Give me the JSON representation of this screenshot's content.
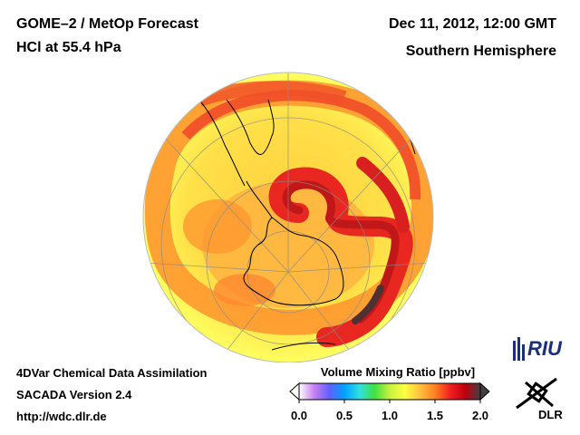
{
  "header": {
    "instrument": "GOME–2 / MetOp Forecast",
    "species": "HCl at 55.4 hPa",
    "datetime": "Dec 11, 2012, 12:00 GMT",
    "region": "Southern Hemisphere"
  },
  "footer": {
    "line1": "4DVar Chemical Data Assimilation",
    "line2": "SACADA Version 2.4",
    "url": "http://wdc.dlr.de"
  },
  "colorbar": {
    "title": "Volume Mixing Ratio [ppbv]",
    "ticks": [
      "0.0",
      "0.5",
      "1.0",
      "1.5",
      "2.0"
    ],
    "range": [
      0.0,
      2.0
    ],
    "colors": [
      "#ffffff",
      "#c87ff0",
      "#6060ff",
      "#00a0ff",
      "#30e0e0",
      "#40e040",
      "#c8f040",
      "#ffff40",
      "#ffc040",
      "#ff8020",
      "#f02020",
      "#c00010",
      "#404040"
    ]
  },
  "logos": {
    "riu": "RIU",
    "dlr": "DLR"
  },
  "map": {
    "projection": "orthographic",
    "hemisphere": "south",
    "colors": {
      "background": "#ffff60",
      "orange": "#ffa030",
      "red": "#f03020",
      "darkred": "#c01818",
      "peak": "#402020",
      "coast": "#000000",
      "grid": "#888888"
    }
  }
}
